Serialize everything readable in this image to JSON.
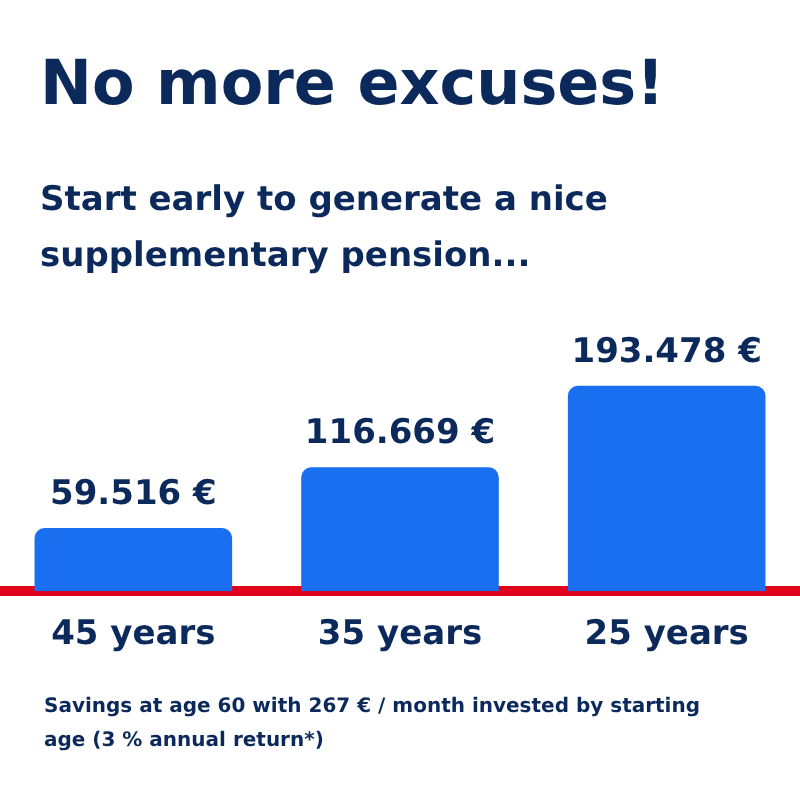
{
  "chart_data": {
    "type": "bar",
    "title": "No more excuses!",
    "subtitle": "Start early to generate a nice supplementary pension...",
    "categories": [
      "45 years",
      "35 years",
      "25 years"
    ],
    "values": [
      59516,
      116669,
      193478
    ],
    "value_labels": [
      "59.516 €",
      "116.669 €",
      "193.478 €"
    ],
    "color": "#1a6ff0",
    "grid": false,
    "legend": false,
    "annotations": [
      "Savings at age 60 with 267 € / month invested by starting age (3 % annual return*)"
    ]
  }
}
